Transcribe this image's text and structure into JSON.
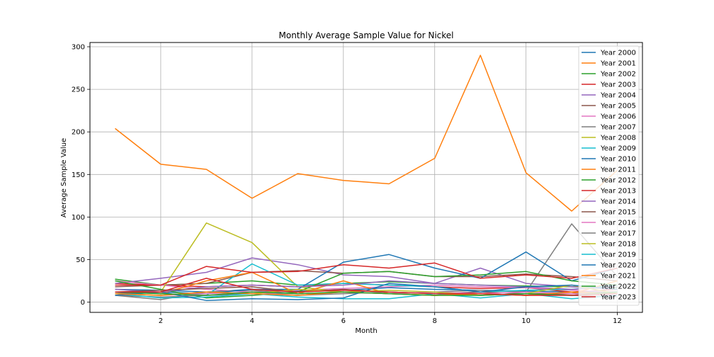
{
  "chart_data": {
    "type": "line",
    "title": "Monthly Average Sample Value for Nickel",
    "xlabel": "Month",
    "ylabel": "Average Sample Value",
    "xlim": [
      0.45,
      12.55
    ],
    "ylim": [
      -12,
      305
    ],
    "xticks": [
      2,
      4,
      6,
      8,
      10,
      12
    ],
    "yticks": [
      0,
      50,
      100,
      150,
      200,
      250,
      300
    ],
    "grid": true,
    "legend_position": "upper right",
    "x": [
      1,
      2,
      3,
      4,
      5,
      6,
      7,
      8,
      9,
      10,
      11,
      12
    ],
    "series": [
      {
        "name": "Year 2000",
        "color": "#1f77b4",
        "values": [
          15,
          14,
          12,
          15,
          13,
          14,
          17,
          15,
          14,
          13,
          12,
          12
        ]
      },
      {
        "name": "Year 2001",
        "color": "#ff7f0e",
        "values": [
          204,
          162,
          156,
          122,
          151,
          143,
          139,
          169,
          290,
          152,
          107,
          155
        ]
      },
      {
        "name": "Year 2002",
        "color": "#2ca02c",
        "values": [
          27,
          20,
          22,
          25,
          20,
          22,
          24,
          22,
          20,
          19,
          18,
          17
        ]
      },
      {
        "name": "Year 2003",
        "color": "#d62728",
        "values": [
          22,
          20,
          18,
          20,
          18,
          22,
          20,
          18,
          16,
          17,
          12,
          15
        ]
      },
      {
        "name": "Year 2004",
        "color": "#9467bd",
        "values": [
          22,
          28,
          35,
          52,
          44,
          32,
          30,
          22,
          40,
          22,
          18,
          15
        ]
      },
      {
        "name": "Year 2005",
        "color": "#8c564b",
        "values": [
          18,
          20,
          22,
          35,
          37,
          34,
          36,
          30,
          30,
          33,
          30,
          25
        ]
      },
      {
        "name": "Year 2006",
        "color": "#e377c2",
        "values": [
          25,
          20,
          15,
          12,
          14,
          16,
          18,
          20,
          18,
          17,
          14,
          12
        ]
      },
      {
        "name": "Year 2007",
        "color": "#7f7f7f",
        "values": [
          8,
          3,
          12,
          14,
          10,
          12,
          10,
          12,
          14,
          12,
          92,
          30
        ]
      },
      {
        "name": "Year 2008",
        "color": "#bcbd22",
        "values": [
          10,
          12,
          93,
          70,
          18,
          12,
          10,
          8,
          10,
          8,
          12,
          10
        ]
      },
      {
        "name": "Year 2009",
        "color": "#17becf",
        "values": [
          12,
          10,
          8,
          45,
          20,
          22,
          20,
          18,
          12,
          14,
          15,
          20
        ]
      },
      {
        "name": "Year 2010",
        "color": "#1f77b4",
        "values": [
          10,
          12,
          10,
          15,
          15,
          47,
          56,
          40,
          28,
          59,
          25,
          40
        ]
      },
      {
        "name": "Year 2011",
        "color": "#ff7f0e",
        "values": [
          12,
          10,
          25,
          35,
          10,
          25,
          10,
          8,
          10,
          8,
          10,
          25
        ]
      },
      {
        "name": "Year 2012",
        "color": "#2ca02c",
        "values": [
          25,
          15,
          5,
          8,
          12,
          34,
          36,
          30,
          32,
          36,
          25,
          20
        ]
      },
      {
        "name": "Year 2013",
        "color": "#d62728",
        "values": [
          20,
          20,
          42,
          35,
          36,
          44,
          40,
          46,
          28,
          32,
          28,
          40
        ]
      },
      {
        "name": "Year 2014",
        "color": "#9467bd",
        "values": [
          15,
          12,
          18,
          20,
          18,
          20,
          25,
          22,
          20,
          18,
          15,
          18
        ]
      },
      {
        "name": "Year 2015",
        "color": "#8c564b",
        "values": [
          12,
          14,
          16,
          18,
          12,
          15,
          12,
          10,
          12,
          10,
          10,
          12
        ]
      },
      {
        "name": "Year 2016",
        "color": "#e377c2",
        "values": [
          10,
          8,
          10,
          12,
          8,
          12,
          10,
          12,
          10,
          12,
          10,
          8
        ]
      },
      {
        "name": "Year 2017",
        "color": "#7f7f7f",
        "values": [
          8,
          6,
          8,
          10,
          8,
          10,
          12,
          10,
          8,
          10,
          8,
          6
        ]
      },
      {
        "name": "Year 2018",
        "color": "#bcbd22",
        "values": [
          10,
          8,
          12,
          10,
          15,
          12,
          14,
          12,
          8,
          10,
          20,
          10
        ]
      },
      {
        "name": "Year 2019",
        "color": "#17becf",
        "values": [
          10,
          5,
          6,
          10,
          6,
          4,
          4,
          10,
          5,
          10,
          4,
          8
        ]
      },
      {
        "name": "Year 2020",
        "color": "#1f77b4",
        "values": [
          8,
          12,
          2,
          4,
          3,
          5,
          22,
          18,
          12,
          18,
          20,
          15
        ]
      },
      {
        "name": "Year 2021",
        "color": "#ff7f0e",
        "values": [
          10,
          8,
          12,
          10,
          8,
          12,
          10,
          8,
          10,
          8,
          12,
          10
        ]
      },
      {
        "name": "Year 2022",
        "color": "#2ca02c",
        "values": [
          12,
          10,
          8,
          12,
          10,
          12,
          10,
          8,
          8,
          10,
          8,
          12
        ]
      },
      {
        "name": "Year 2023",
        "color": "#d62728",
        "values": [
          12,
          12,
          28,
          15,
          12,
          14,
          12,
          10,
          10,
          8,
          8,
          10
        ]
      }
    ]
  }
}
